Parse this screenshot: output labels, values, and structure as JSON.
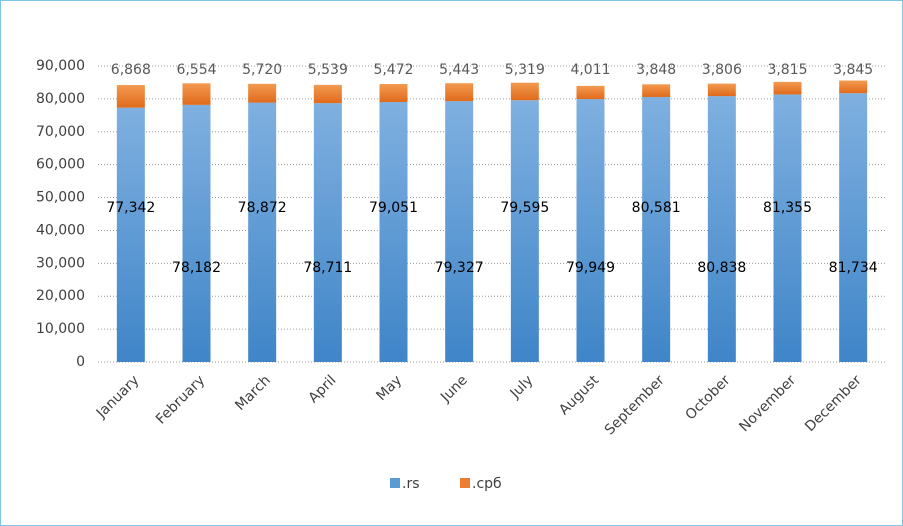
{
  "chart_data": {
    "type": "stacked_bar",
    "categories": [
      "January",
      "February",
      "March",
      "April",
      "May",
      "June",
      "July",
      "August",
      "September",
      "October",
      "November",
      "December"
    ],
    "series": [
      {
        "name": ".rs",
        "color": "#5b9bd5",
        "values": [
          77342,
          78182,
          78872,
          78711,
          79051,
          79327,
          79595,
          79949,
          80581,
          80838,
          81355,
          81734
        ],
        "value_labels": [
          "77,342",
          "78,182",
          "78,872",
          "78,711",
          "79,051",
          "79,327",
          "79,595",
          "79,949",
          "80,581",
          "80,838",
          "81,355",
          "81,734"
        ]
      },
      {
        "name": ".срб",
        "color": "#ed7d31",
        "values": [
          6868,
          6554,
          5720,
          5539,
          5472,
          5443,
          5319,
          4011,
          3848,
          3806,
          3815,
          3845
        ],
        "value_labels": [
          "6,868",
          "6,554",
          "5,720",
          "5,539",
          "5,472",
          "5,443",
          "5,319",
          "4,011",
          "3,848",
          "3,806",
          "3,815",
          "3,845"
        ]
      }
    ],
    "ylim": [
      0,
      90000
    ],
    "yticks": [
      0,
      {
        "value": 10000,
        "label": "10,000"
      },
      {
        "value": 20000,
        "label": "20,000"
      },
      {
        "value": 30000,
        "label": "30,000"
      },
      {
        "value": 40000,
        "label": "40,000"
      },
      {
        "value": 50000,
        "label": "50,000"
      },
      {
        "value": 60000,
        "label": "60,000"
      },
      {
        "value": 70000,
        "label": "70,000"
      },
      {
        "value": 80000,
        "label": "80,000"
      },
      {
        "value": 90000,
        "label": "90,000"
      }
    ],
    "grid": true,
    "legend": "bottom"
  }
}
